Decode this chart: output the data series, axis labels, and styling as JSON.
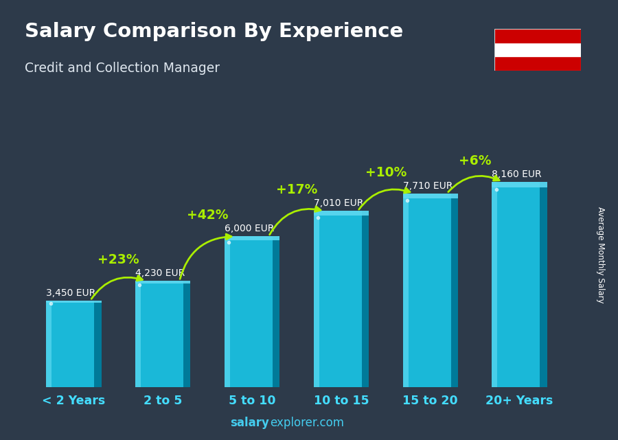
{
  "title": "Salary Comparison By Experience",
  "subtitle": "Credit and Collection Manager",
  "categories": [
    "< 2 Years",
    "2 to 5",
    "5 to 10",
    "10 to 15",
    "15 to 20",
    "20+ Years"
  ],
  "values": [
    3450,
    4230,
    6000,
    7010,
    7710,
    8160
  ],
  "value_labels": [
    "3,450 EUR",
    "4,230 EUR",
    "6,000 EUR",
    "7,010 EUR",
    "7,710 EUR",
    "8,160 EUR"
  ],
  "pct_labels": [
    "+23%",
    "+42%",
    "+17%",
    "+10%",
    "+6%"
  ],
  "bar_color_main": "#1ab8d8",
  "bar_color_light": "#5dd8f0",
  "bar_color_dark": "#0090b0",
  "bar_color_right": "#007a99",
  "bg_color": "#2d3a4a",
  "title_color": "#ffffff",
  "subtitle_color": "#e0e8f0",
  "value_label_color": "#ffffff",
  "pct_color": "#aaee00",
  "xticklabel_color": "#44ddff",
  "ylabel_text": "Average Monthly Salary",
  "footer_bold": "salary",
  "footer_normal": "explorer.com",
  "footer_color": "#44ccee",
  "ylim_max": 10500,
  "bar_bottom": 0,
  "figsize": [
    9.0,
    6.41
  ],
  "dpi": 100,
  "flag_red": "#cc0000",
  "flag_white": "#ffffff"
}
